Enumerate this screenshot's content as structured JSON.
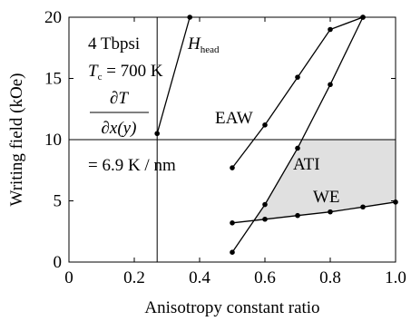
{
  "chart_data": {
    "type": "line",
    "xlabel": "Anisotropy constant ratio",
    "ylabel": "Writing field (kOe)",
    "xlim": [
      0,
      1.0
    ],
    "ylim": [
      0,
      20
    ],
    "xticks": [
      "0",
      "0.2",
      "0.4",
      "0.6",
      "0.8",
      "1.0"
    ],
    "yticks": [
      "0",
      "5",
      "10",
      "15",
      "20"
    ],
    "grid": false,
    "series": [
      {
        "name": "EAW",
        "x": [
          0.5,
          0.6,
          0.7,
          0.8,
          0.9
        ],
        "y": [
          7.7,
          11.2,
          15.1,
          19.0,
          20.0
        ]
      },
      {
        "name": "ATI",
        "x": [
          0.5,
          0.6,
          0.7,
          0.8,
          0.9
        ],
        "y": [
          0.8,
          4.7,
          9.3,
          14.5,
          20.0
        ]
      },
      {
        "name": "WE",
        "x": [
          0.5,
          0.6,
          0.7,
          0.8,
          0.9,
          1.0
        ],
        "y": [
          3.2,
          3.5,
          3.8,
          4.1,
          4.5,
          4.9
        ]
      },
      {
        "name": "H_head",
        "x": [
          0.27,
          0.37
        ],
        "y": [
          10.5,
          20.0
        ]
      }
    ],
    "reference_lines": {
      "horizontal_y": 10,
      "vertical_x": 0.27
    },
    "shaded_region": {
      "x": [
        0.711,
        1.0
      ],
      "description_text": ""
    },
    "annotations": {
      "density": "4 Tbpsi",
      "tc_symbol": "T",
      "tc_subscript": "c",
      "tc_value": " = 700 K",
      "gradient_numerator": "∂T",
      "gradient_denominator": "∂x(y)",
      "gradient_value": "= 6.9 K / nm",
      "hhead_symbol": "H",
      "hhead_subscript": "head",
      "label_eaw": "EAW",
      "label_ati": "ATI",
      "label_we": "WE"
    },
    "colors": {
      "line": "#000000",
      "shade": "#e0e0e0"
    }
  }
}
